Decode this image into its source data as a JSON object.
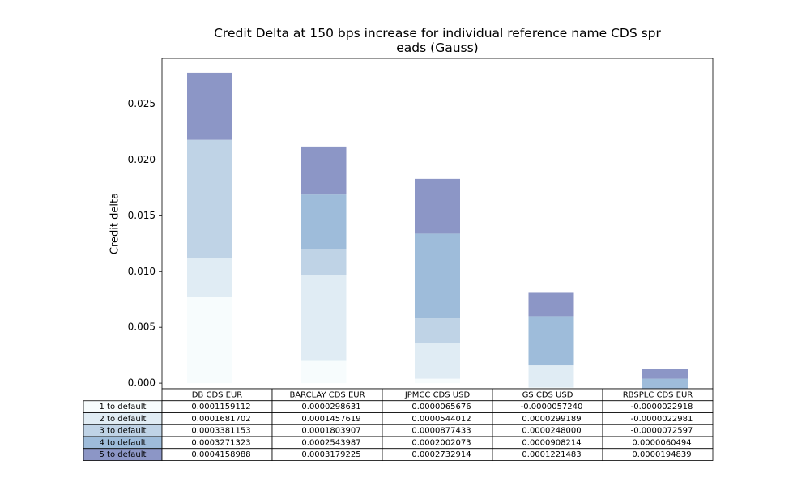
{
  "chart_data": {
    "type": "bar",
    "stacked": true,
    "title": "Credit Delta at 150 bps increase for individual reference name CDS spr\neads (Gauss)",
    "ylabel": "Credit delta",
    "categories": [
      "DB CDS EUR",
      "BARCLAY CDS EUR",
      "JPMCC CDS USD",
      "GS CDS USD",
      "RBSPLC CDS EUR"
    ],
    "series": [
      {
        "name": "1 to default",
        "color": "#f7fcfd",
        "values": [
          0.0077,
          0.002,
          0.0004,
          -0.0004,
          -0.0002
        ]
      },
      {
        "name": "2 to default",
        "color": "#e0ecf4",
        "values": [
          0.0035,
          0.0077,
          0.0032,
          0.002,
          -0.0002
        ]
      },
      {
        "name": "3 to default",
        "color": "#bfd3e6",
        "values": [
          0.0106,
          0.0023,
          0.0022,
          0,
          -0.0005
        ]
      },
      {
        "name": "4 to default",
        "color": "#9ebcda",
        "values": [
          0,
          0.0049,
          0.0076,
          0.0044,
          0.0013
        ]
      },
      {
        "name": "5 to default",
        "color": "#8c96c6",
        "values": [
          0.006,
          0.0043,
          0.0049,
          0.0021,
          0.0009
        ]
      }
    ],
    "table": [
      [
        "0.0001159112",
        "0.0000298631",
        "0.0000065676",
        "-0.0000057240",
        "-0.0000022918"
      ],
      [
        "0.0001681702",
        "0.0001457619",
        "0.0000544012",
        "0.0000299189",
        "-0.0000022981"
      ],
      [
        "0.0003381153",
        "0.0001803907",
        "0.0000877433",
        "0.0000248000",
        "-0.0000072597"
      ],
      [
        "0.0003271323",
        "0.0002543987",
        "0.0002002073",
        "0.0000908214",
        "0.0000060494"
      ],
      [
        "0.0004158988",
        "0.0003179225",
        "0.0002732914",
        "0.0001221483",
        "0.0000194839"
      ]
    ],
    "ylim": [
      -0.0005,
      0.0291
    ],
    "yticks": [
      {
        "value": 0,
        "label": "0.000"
      },
      {
        "value": 0.005,
        "label": "0.005"
      },
      {
        "value": 0.01,
        "label": "0.010"
      },
      {
        "value": 0.015,
        "label": "0.015"
      },
      {
        "value": 0.02,
        "label": "0.020"
      },
      {
        "value": 0.025,
        "label": "0.025"
      }
    ],
    "grid": false
  }
}
